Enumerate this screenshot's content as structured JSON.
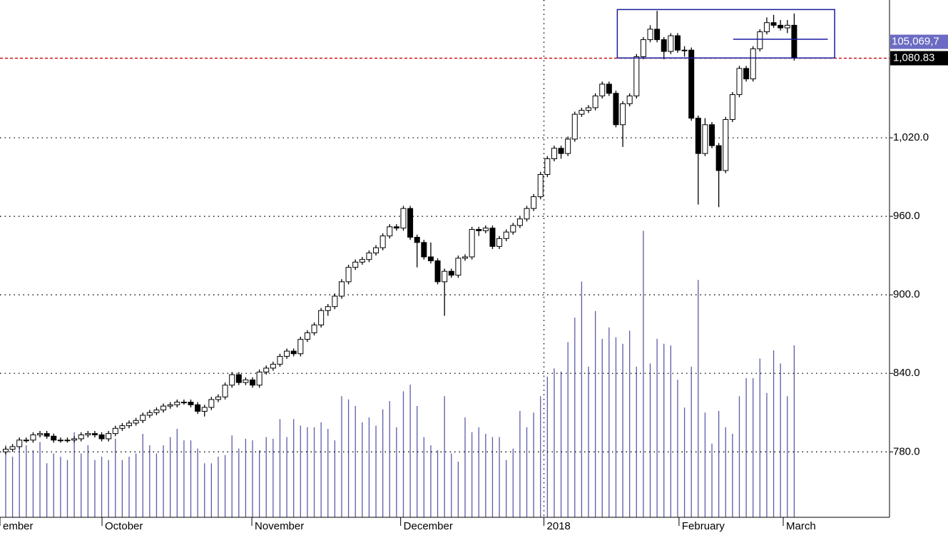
{
  "chart_data": {
    "type": "candlestick",
    "xlim": [
      -0.83,
      128.9
    ],
    "xticks": [
      {
        "value": -0.83,
        "label": "ember"
      },
      {
        "value": 14.05,
        "label": "October"
      },
      {
        "value": 35.9,
        "label": "November"
      },
      {
        "value": 57.6,
        "label": "December"
      },
      {
        "value": 78.5,
        "label": "2018"
      },
      {
        "value": 98.2,
        "label": "February"
      },
      {
        "value": 113.4,
        "label": "March"
      }
    ],
    "year_divider_tick": 4,
    "ylim": [
      730,
      1125.3
    ],
    "yticks": [
      {
        "value": 780,
        "label": "780.0"
      },
      {
        "value": 840,
        "label": "840.0"
      },
      {
        "value": 900,
        "label": "900.0"
      },
      {
        "value": 960,
        "label": "960.0"
      },
      {
        "value": 1020,
        "label": "1,020.0"
      }
    ],
    "grid": true,
    "open": [
      780,
      782,
      784,
      789,
      789,
      793,
      794,
      792,
      789,
      789,
      789,
      790,
      793,
      794,
      793,
      790,
      794,
      798,
      800,
      802,
      804,
      808,
      810,
      812,
      815,
      816,
      818,
      818,
      816,
      811,
      814,
      820,
      822,
      831,
      839,
      833,
      835,
      831,
      841,
      844,
      847,
      853,
      857,
      855,
      866,
      871,
      877,
      888,
      891,
      899,
      910,
      921,
      925,
      927,
      932,
      936,
      945,
      952,
      951,
      966,
      944,
      940,
      929,
      926,
      910,
      918,
      915,
      928,
      929,
      950,
      949,
      951,
      937,
      943,
      948,
      953,
      958,
      966,
      975,
      992,
      1004,
      1012,
      1008,
      1019,
      1038,
      1041,
      1043,
      1052,
      1061,
      1054,
      1030,
      1046,
      1052,
      1082,
      1095,
      1103,
      1095,
      1086,
      1098,
      1087,
      1087,
      1035,
      1008,
      1030,
      1014,
      995,
      1034,
      1053,
      1073,
      1065,
      1088,
      1101,
      1108,
      1106,
      1104,
      1106
    ],
    "high": [
      784,
      786,
      791,
      791,
      795,
      796,
      796,
      794,
      791,
      791,
      792,
      795,
      796,
      796,
      795,
      796,
      800,
      802,
      804,
      806,
      810,
      812,
      814,
      817,
      818,
      820,
      820,
      820,
      818,
      816,
      822,
      824,
      833,
      841,
      841,
      837,
      837,
      843,
      846,
      849,
      855,
      859,
      859,
      868,
      873,
      879,
      890,
      893,
      901,
      912,
      923,
      927,
      929,
      934,
      938,
      947,
      954,
      954,
      968,
      968,
      946,
      942,
      940,
      928,
      920,
      920,
      930,
      931,
      952,
      952,
      953,
      953,
      945,
      950,
      955,
      960,
      968,
      977,
      994,
      1006,
      1014,
      1014,
      1021,
      1040,
      1043,
      1045,
      1054,
      1063,
      1063,
      1056,
      1048,
      1054,
      1084,
      1097,
      1106,
      1117,
      1097,
      1100,
      1100,
      1090,
      1089,
      1037,
      1035,
      1032,
      1016,
      1036,
      1055,
      1075,
      1075,
      1090,
      1103,
      1112,
      1114,
      1110,
      1110,
      1115
    ],
    "low": [
      778,
      780,
      782,
      787,
      787,
      791,
      790,
      787,
      787,
      787,
      787,
      788,
      791,
      791,
      788,
      788,
      792,
      796,
      798,
      800,
      802,
      806,
      808,
      810,
      813,
      814,
      816,
      814,
      809,
      807,
      812,
      818,
      820,
      829,
      831,
      831,
      829,
      829,
      839,
      842,
      845,
      851,
      853,
      853,
      864,
      869,
      875,
      884,
      889,
      897,
      908,
      919,
      923,
      925,
      930,
      934,
      943,
      949,
      949,
      942,
      921,
      927,
      924,
      908,
      884,
      913,
      913,
      926,
      927,
      945,
      947,
      935,
      935,
      941,
      946,
      951,
      956,
      964,
      973,
      990,
      1002,
      1004,
      1006,
      1017,
      1036,
      1039,
      1041,
      1050,
      1052,
      1028,
      1013,
      1044,
      1050,
      1080,
      1093,
      1093,
      1080,
      1084,
      1085,
      1082,
      1033,
      969,
      1006,
      1012,
      967,
      993,
      1032,
      1051,
      1063,
      1063,
      1086,
      1099,
      1104,
      1102,
      1100,
      1079
    ],
    "close": [
      782,
      784,
      789,
      789,
      793,
      794,
      792,
      789,
      789,
      789,
      790,
      793,
      794,
      793,
      790,
      794,
      798,
      800,
      802,
      804,
      808,
      810,
      812,
      815,
      816,
      818,
      818,
      816,
      811,
      814,
      820,
      822,
      831,
      839,
      833,
      835,
      831,
      841,
      844,
      847,
      853,
      857,
      855,
      866,
      871,
      877,
      888,
      891,
      899,
      910,
      921,
      925,
      927,
      932,
      936,
      945,
      952,
      951,
      966,
      944,
      940,
      929,
      926,
      910,
      918,
      915,
      928,
      929,
      950,
      949,
      951,
      937,
      943,
      948,
      953,
      958,
      966,
      975,
      992,
      1004,
      1012,
      1008,
      1019,
      1038,
      1041,
      1043,
      1052,
      1061,
      1054,
      1030,
      1046,
      1052,
      1082,
      1095,
      1103,
      1095,
      1086,
      1098,
      1087,
      1087,
      1035,
      1008,
      1030,
      1014,
      995,
      1034,
      1053,
      1073,
      1065,
      1088,
      1101,
      1108,
      1106,
      1104,
      1106,
      1080.83
    ],
    "volume": [
      44,
      37,
      42,
      44,
      41,
      46,
      33,
      39,
      37,
      35,
      52,
      39,
      44,
      35,
      37,
      35,
      48,
      35,
      37,
      39,
      51,
      44,
      39,
      44,
      49,
      54,
      47,
      47,
      42,
      33,
      33,
      37,
      38,
      50,
      42,
      48,
      47,
      41,
      49,
      48,
      60,
      49,
      60,
      56,
      55,
      55,
      58,
      54,
      47,
      74,
      72,
      68,
      58,
      61,
      56,
      66,
      71,
      55,
      77,
      81,
      68,
      49,
      44,
      41,
      74,
      39,
      34,
      61,
      52,
      55,
      51,
      49,
      49,
      35,
      42,
      65,
      55,
      64,
      74,
      86,
      91,
      89,
      107,
      122,
      144,
      92,
      126,
      109,
      116,
      110,
      106,
      114,
      92,
      175,
      94,
      109,
      106,
      105,
      84,
      67,
      92,
      145,
      64,
      45,
      65,
      55,
      51,
      74,
      85,
      85,
      97,
      76,
      102,
      94,
      74,
      105.0697
    ],
    "vlim": [
      0,
      316
    ],
    "up_color": "#ffffff",
    "down_color": "#000000",
    "volume_color": "#5b5ba8",
    "last_price_label": "1,080.83",
    "last_volume_label": "105,069,7",
    "price_line_color": "#cc0000",
    "highlight_box": {
      "x": [
        89.2,
        120.9
      ],
      "y": [
        1081,
        1118
      ],
      "color": "#1a1aa0"
    },
    "highlight_line": {
      "x": [
        106.1,
        119.9
      ],
      "y": 1095.3,
      "color": "#1a1aa0"
    }
  }
}
